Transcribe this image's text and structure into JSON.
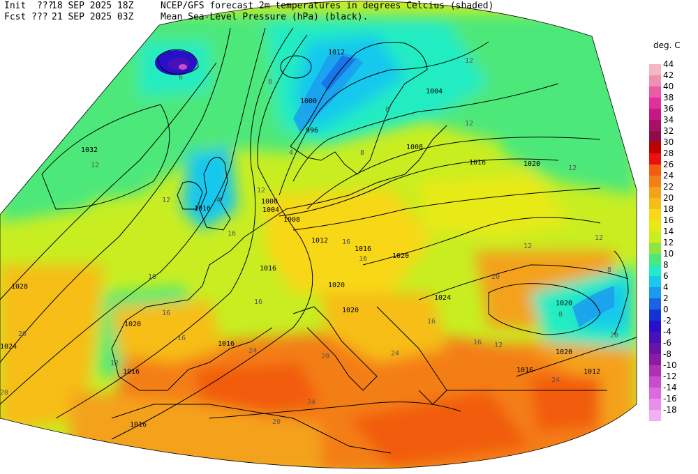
{
  "header": {
    "init_label": "Init  ???",
    "init_value": "18 SEP 2025 18Z",
    "fcst_label": "Fcst ???",
    "fcst_value": "21 SEP 2025 03Z",
    "title_line1": "NCEP/GFS forecast 2m temperatures in degrees Celcius (shaded)",
    "title_line2": "Mean Sea-Level Pressure (hPa) (black)."
  },
  "legend": {
    "title": "deg. C",
    "entries": [
      {
        "label": "44",
        "color": "#f4b8c2"
      },
      {
        "label": "42",
        "color": "#f090b0"
      },
      {
        "label": "40",
        "color": "#ec5ca6"
      },
      {
        "label": "38",
        "color": "#e0309c"
      },
      {
        "label": "36",
        "color": "#c41884"
      },
      {
        "label": "34",
        "color": "#a81068"
      },
      {
        "label": "32",
        "color": "#900c44"
      },
      {
        "label": "30",
        "color": "#c00000"
      },
      {
        "label": "28",
        "color": "#ee1010"
      },
      {
        "label": "26",
        "color": "#f25c10"
      },
      {
        "label": "24",
        "color": "#f47e18"
      },
      {
        "label": "22",
        "color": "#f4a21c"
      },
      {
        "label": "20",
        "color": "#f6be14"
      },
      {
        "label": "18",
        "color": "#f8d818"
      },
      {
        "label": "16",
        "color": "#e8ea14"
      },
      {
        "label": "14",
        "color": "#c8ee22"
      },
      {
        "label": "12",
        "color": "#92e43c"
      },
      {
        "label": "10",
        "color": "#4ee87a"
      },
      {
        "label": "8",
        "color": "#24ecc2"
      },
      {
        "label": "6",
        "color": "#18c8ee"
      },
      {
        "label": "4",
        "color": "#1c9aee"
      },
      {
        "label": "2",
        "color": "#1a62e6"
      },
      {
        "label": "0",
        "color": "#1234d4"
      },
      {
        "label": "-2",
        "color": "#2810c8"
      },
      {
        "label": "-4",
        "color": "#4810b8"
      },
      {
        "label": "-6",
        "color": "#6814a8"
      },
      {
        "label": "-8",
        "color": "#8c1aa4"
      },
      {
        "label": "-10",
        "color": "#b030b4"
      },
      {
        "label": "-12",
        "color": "#c84ccc"
      },
      {
        "label": "-14",
        "color": "#dc6ade"
      },
      {
        "label": "-16",
        "color": "#ea8eea"
      },
      {
        "label": "-18",
        "color": "#f4aef4"
      }
    ]
  },
  "isobar_labels": [
    "1032",
    "1028",
    "1024",
    "1020",
    "1020",
    "1016",
    "1016",
    "1016",
    "1016",
    "1016",
    "1016",
    "1012",
    "1012",
    "1008",
    "1008",
    "1004",
    "1004",
    "1000",
    "996",
    "1000",
    "1012",
    "1016",
    "1020",
    "1020",
    "1024",
    "1020",
    "1020",
    "1016",
    "1020"
  ],
  "temp_labels": [
    "12",
    "12",
    "16",
    "16",
    "16",
    "20",
    "20",
    "24",
    "24",
    "20",
    "16",
    "12",
    "8",
    "8",
    "4",
    "6",
    "4",
    "12",
    "8",
    "12",
    "16",
    "20",
    "24",
    "16",
    "12",
    "16",
    "12",
    "8",
    "20",
    "12",
    "4",
    "12",
    "16",
    "20",
    "24",
    "16",
    "12",
    "8"
  ]
}
